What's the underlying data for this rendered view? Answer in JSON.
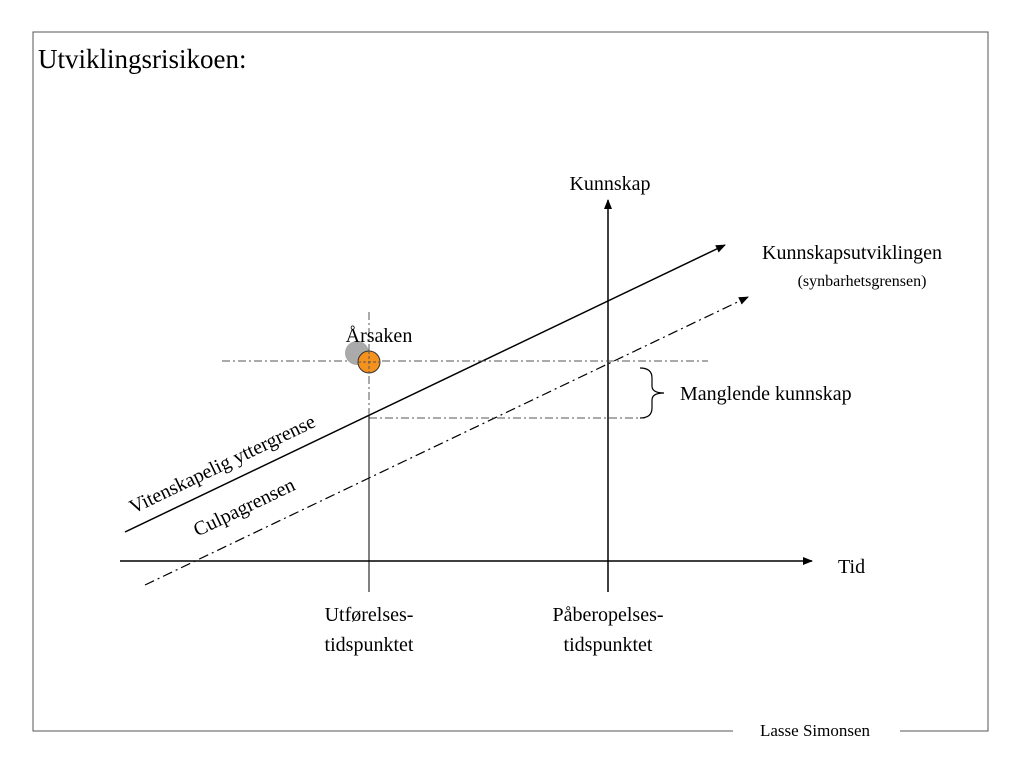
{
  "title": "Utviklingsrisikoen:",
  "axes": {
    "x_label": "Tid",
    "y_label": "Kunnskap"
  },
  "curves": {
    "knowledge": {
      "label": "Kunnskapsutviklingen",
      "sublabel": "(synbarhetsgrensen)"
    },
    "science_limit": {
      "label": "Vitenskapelig yttergrense"
    },
    "culpa": {
      "label": "Culpagrensen"
    }
  },
  "cause": {
    "label": "Årsaken"
  },
  "gap": {
    "label": "Manglende kunnskap"
  },
  "time_points": [
    {
      "line1": "Utførelses-",
      "line2": "tidspunktet"
    },
    {
      "line1": "Påberopelses-",
      "line2": "tidspunktet"
    }
  ],
  "footer": {
    "author": "Lasse Simonsen"
  }
}
